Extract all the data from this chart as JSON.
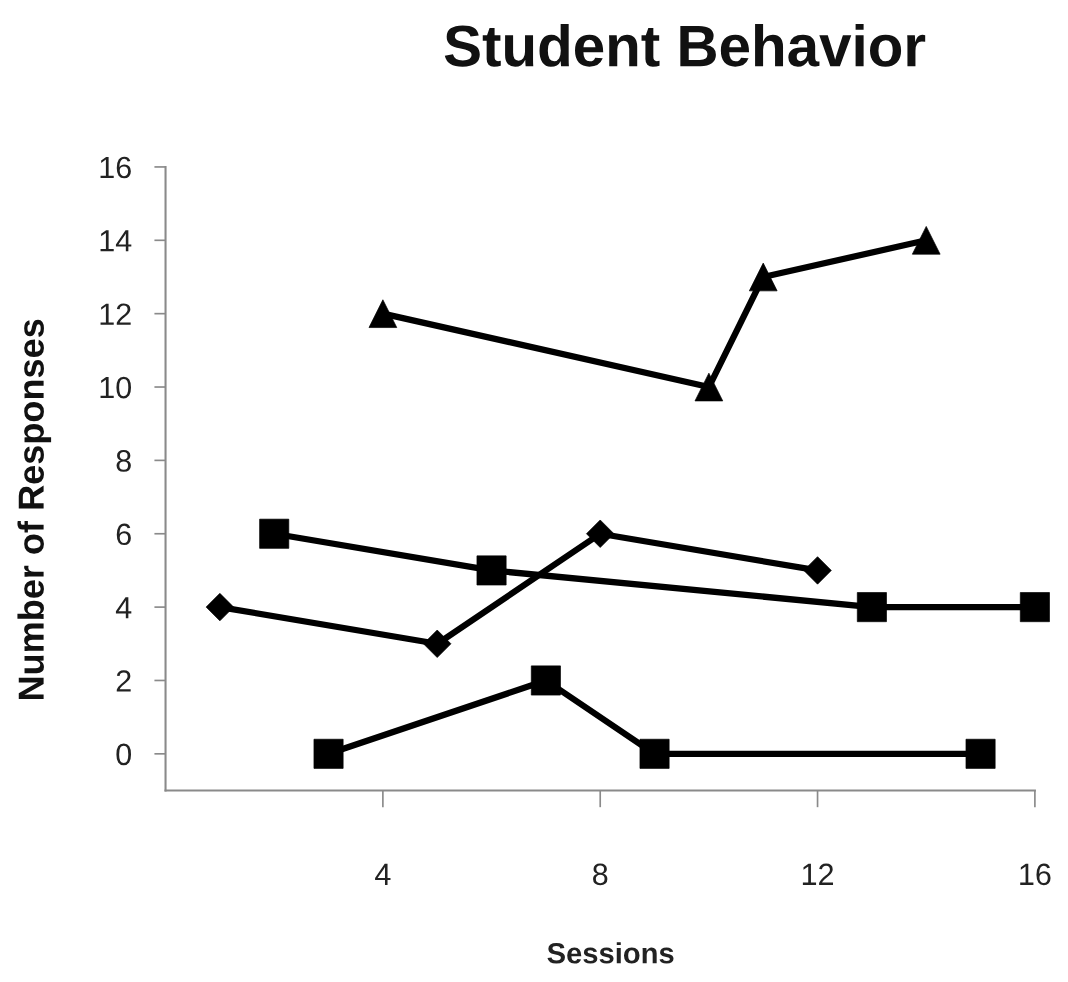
{
  "chart_data": {
    "type": "line",
    "title": "Student Behavior",
    "xlabel": "Sessions",
    "ylabel": "Number of Responses",
    "xlim": [
      0,
      16
    ],
    "xticks": [
      4,
      8,
      12,
      16
    ],
    "ylim": [
      -1,
      16
    ],
    "yticks": [
      0,
      2,
      4,
      6,
      8,
      10,
      12,
      14,
      16
    ],
    "line_style": "solid",
    "series": [
      {
        "x": [
          4,
          10,
          11,
          14
        ],
        "values": [
          12,
          10,
          13,
          14
        ],
        "color": "#000000",
        "marker": "triangle"
      },
      {
        "x": [
          2,
          6,
          13,
          16
        ],
        "values": [
          6,
          5,
          4,
          4
        ],
        "color": "#000000",
        "marker": "square"
      },
      {
        "x": [
          1,
          5,
          8,
          12
        ],
        "values": [
          4,
          3,
          6,
          5
        ],
        "color": "#000000",
        "marker": "diamond"
      },
      {
        "x": [
          3,
          7,
          9,
          15
        ],
        "values": [
          0,
          2,
          0,
          0
        ],
        "color": "#000000",
        "marker": "square"
      }
    ]
  }
}
